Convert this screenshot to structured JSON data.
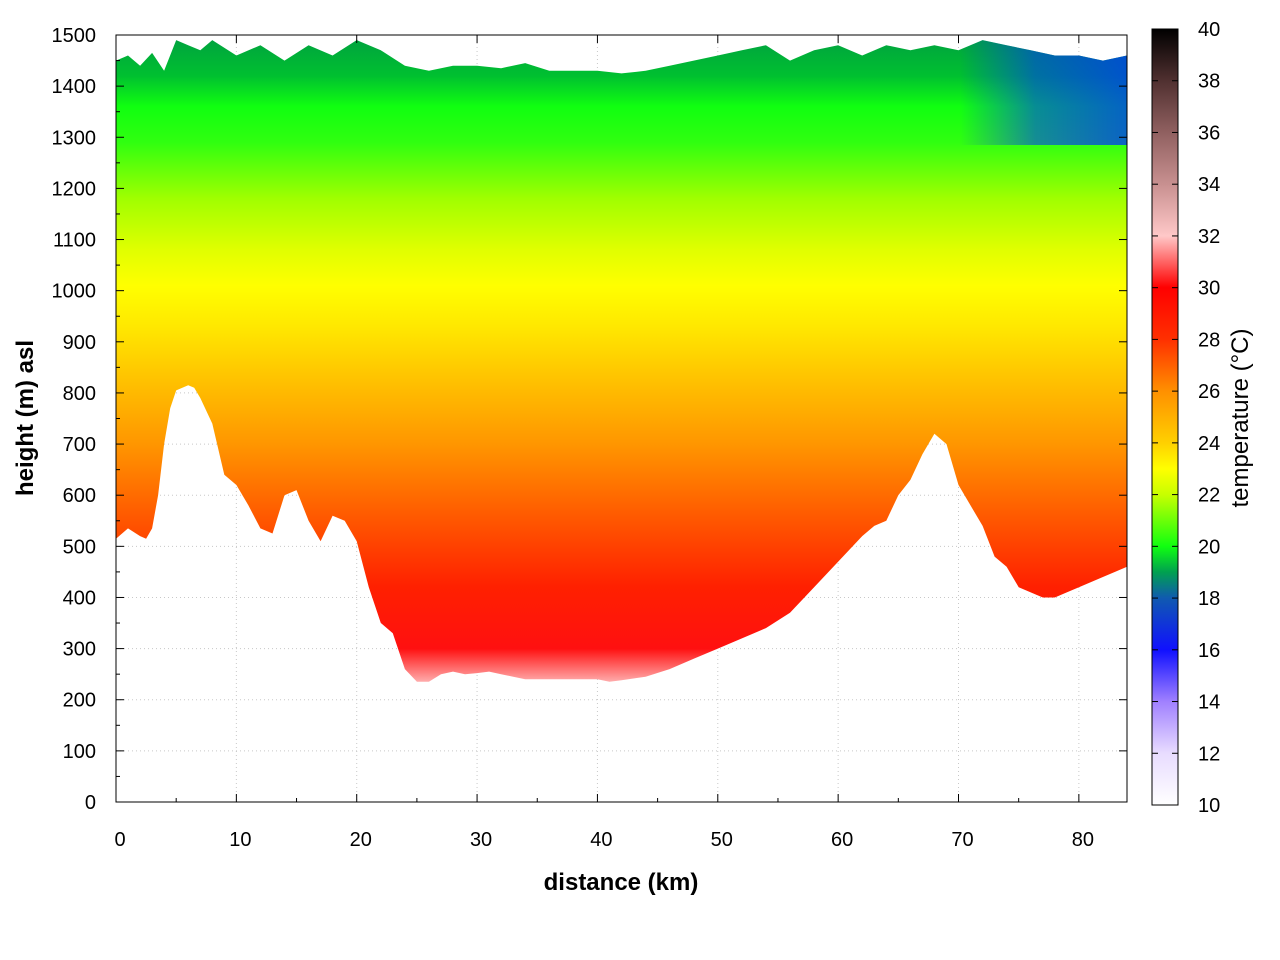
{
  "chart_data": {
    "type": "heatmap",
    "title": "",
    "xlabel": "distance (km)",
    "ylabel": "height (m) asl",
    "colorbar_label": "temperature (°C)",
    "xlim": [
      0,
      84
    ],
    "ylim": [
      0,
      1500
    ],
    "clim": [
      10,
      40
    ],
    "grid": true,
    "x_ticks": [
      0,
      10,
      20,
      30,
      40,
      50,
      60,
      70,
      80
    ],
    "y_ticks": [
      0,
      100,
      200,
      300,
      400,
      500,
      600,
      700,
      800,
      900,
      1000,
      1100,
      1200,
      1300,
      1400,
      1500
    ],
    "c_ticks": [
      10,
      12,
      14,
      16,
      18,
      20,
      22,
      24,
      26,
      28,
      30,
      32,
      34,
      36,
      38,
      40
    ],
    "terrain": {
      "x": [
        0,
        1,
        2,
        2.5,
        3,
        3.5,
        4,
        4.5,
        5,
        6,
        6.5,
        7,
        8,
        9,
        10,
        11,
        12,
        13,
        14,
        15,
        16,
        17,
        18,
        19,
        20,
        21,
        22,
        23,
        24,
        25,
        26,
        27,
        28,
        29,
        30,
        31,
        32,
        33,
        34,
        35,
        36,
        38,
        40,
        41,
        42,
        44,
        46,
        48,
        50,
        52,
        54,
        56,
        58,
        60,
        62,
        63,
        64,
        65,
        66,
        67,
        68,
        69,
        70,
        71,
        72,
        73,
        74,
        75,
        76,
        77,
        78,
        79,
        80,
        81,
        82,
        83,
        84
      ],
      "height": [
        515,
        535,
        520,
        515,
        535,
        600,
        700,
        770,
        805,
        815,
        810,
        790,
        740,
        640,
        620,
        580,
        535,
        525,
        600,
        610,
        550,
        510,
        560,
        550,
        510,
        420,
        350,
        330,
        260,
        235,
        235,
        250,
        255,
        250,
        252,
        255,
        250,
        245,
        240,
        240,
        240,
        240,
        240,
        235,
        238,
        245,
        260,
        280,
        300,
        320,
        340,
        370,
        420,
        470,
        520,
        540,
        550,
        600,
        630,
        680,
        720,
        700,
        620,
        580,
        540,
        480,
        460,
        420,
        410,
        400,
        400,
        410,
        420,
        430,
        440,
        450,
        460
      ]
    },
    "top": {
      "x": [
        0,
        1,
        2,
        3,
        4,
        5,
        6,
        7,
        8,
        10,
        12,
        14,
        16,
        18,
        20,
        22,
        24,
        26,
        28,
        30,
        32,
        34,
        36,
        38,
        40,
        42,
        44,
        46,
        48,
        50,
        52,
        54,
        56,
        58,
        60,
        62,
        64,
        66,
        68,
        70,
        72,
        74,
        76,
        78,
        80,
        82,
        84
      ],
      "height": [
        1450,
        1460,
        1440,
        1465,
        1430,
        1490,
        1480,
        1470,
        1490,
        1460,
        1480,
        1450,
        1480,
        1460,
        1490,
        1470,
        1440,
        1430,
        1440,
        1440,
        1435,
        1445,
        1430,
        1430,
        1430,
        1425,
        1430,
        1440,
        1450,
        1460,
        1470,
        1480,
        1450,
        1470,
        1480,
        1460,
        1480,
        1470,
        1480,
        1470,
        1490,
        1480,
        1470,
        1460,
        1460,
        1450,
        1460
      ]
    },
    "field_description": "temperature decreases with height: about 30 °C near 250 m in the central valley, 24 °C near 800 m, 22 °C near 1000 m, 19-20 °C near 1400 m; cooler (16-17 °C) at the top near 75-83 km"
  }
}
